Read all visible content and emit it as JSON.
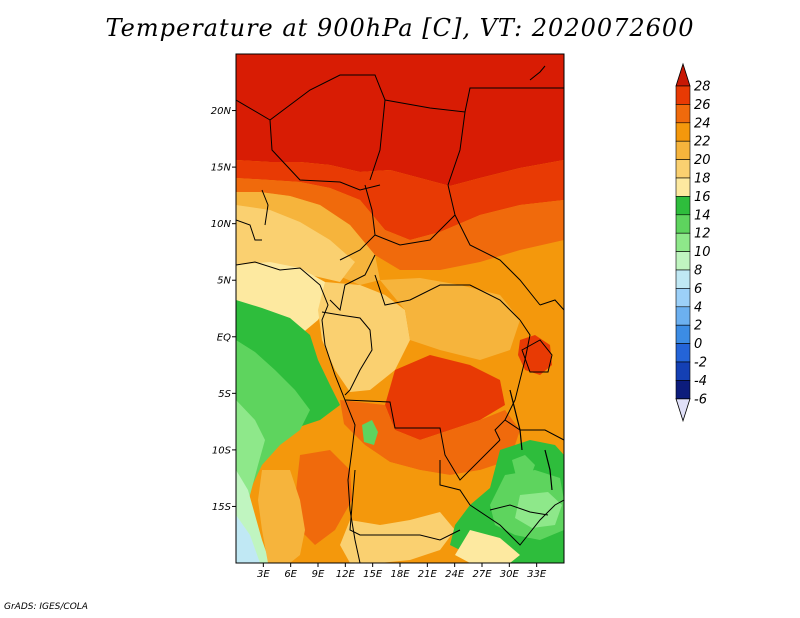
{
  "title": "Temperature at 900hPa [C], VT: 2020072600",
  "credit": "GrADS: IGES/COLA",
  "map": {
    "lon_range": [
      0,
      36
    ],
    "lat_range": [
      -20,
      25
    ],
    "x_ticks": [
      "3E",
      "6E",
      "9E",
      "12E",
      "15E",
      "18E",
      "21E",
      "24E",
      "27E",
      "30E",
      "33E"
    ],
    "y_ticks": [
      "20N",
      "15N",
      "10N",
      "5N",
      "EQ",
      "5S",
      "10S",
      "15S"
    ]
  },
  "colorbar": {
    "labels": [
      "28",
      "26",
      "24",
      "22",
      "20",
      "18",
      "16",
      "14",
      "12",
      "10",
      "8",
      "6",
      "4",
      "2",
      "0",
      "-2",
      "-4",
      "-6"
    ],
    "colors": [
      "#d81c04",
      "#e83a04",
      "#f06a0c",
      "#f4980c",
      "#f6b43c",
      "#fad070",
      "#fde9a0",
      "#2ebd3c",
      "#5ed45e",
      "#8ee88a",
      "#c0f5c0",
      "#c0e8f4",
      "#9cd0f8",
      "#6cb0f0",
      "#3c8ce4",
      "#2464d8",
      "#1440b4",
      "#0c1c7c"
    ],
    "top_arrow_color": "#c81804",
    "bottom_arrow_color": "#e0e0f8"
  }
}
